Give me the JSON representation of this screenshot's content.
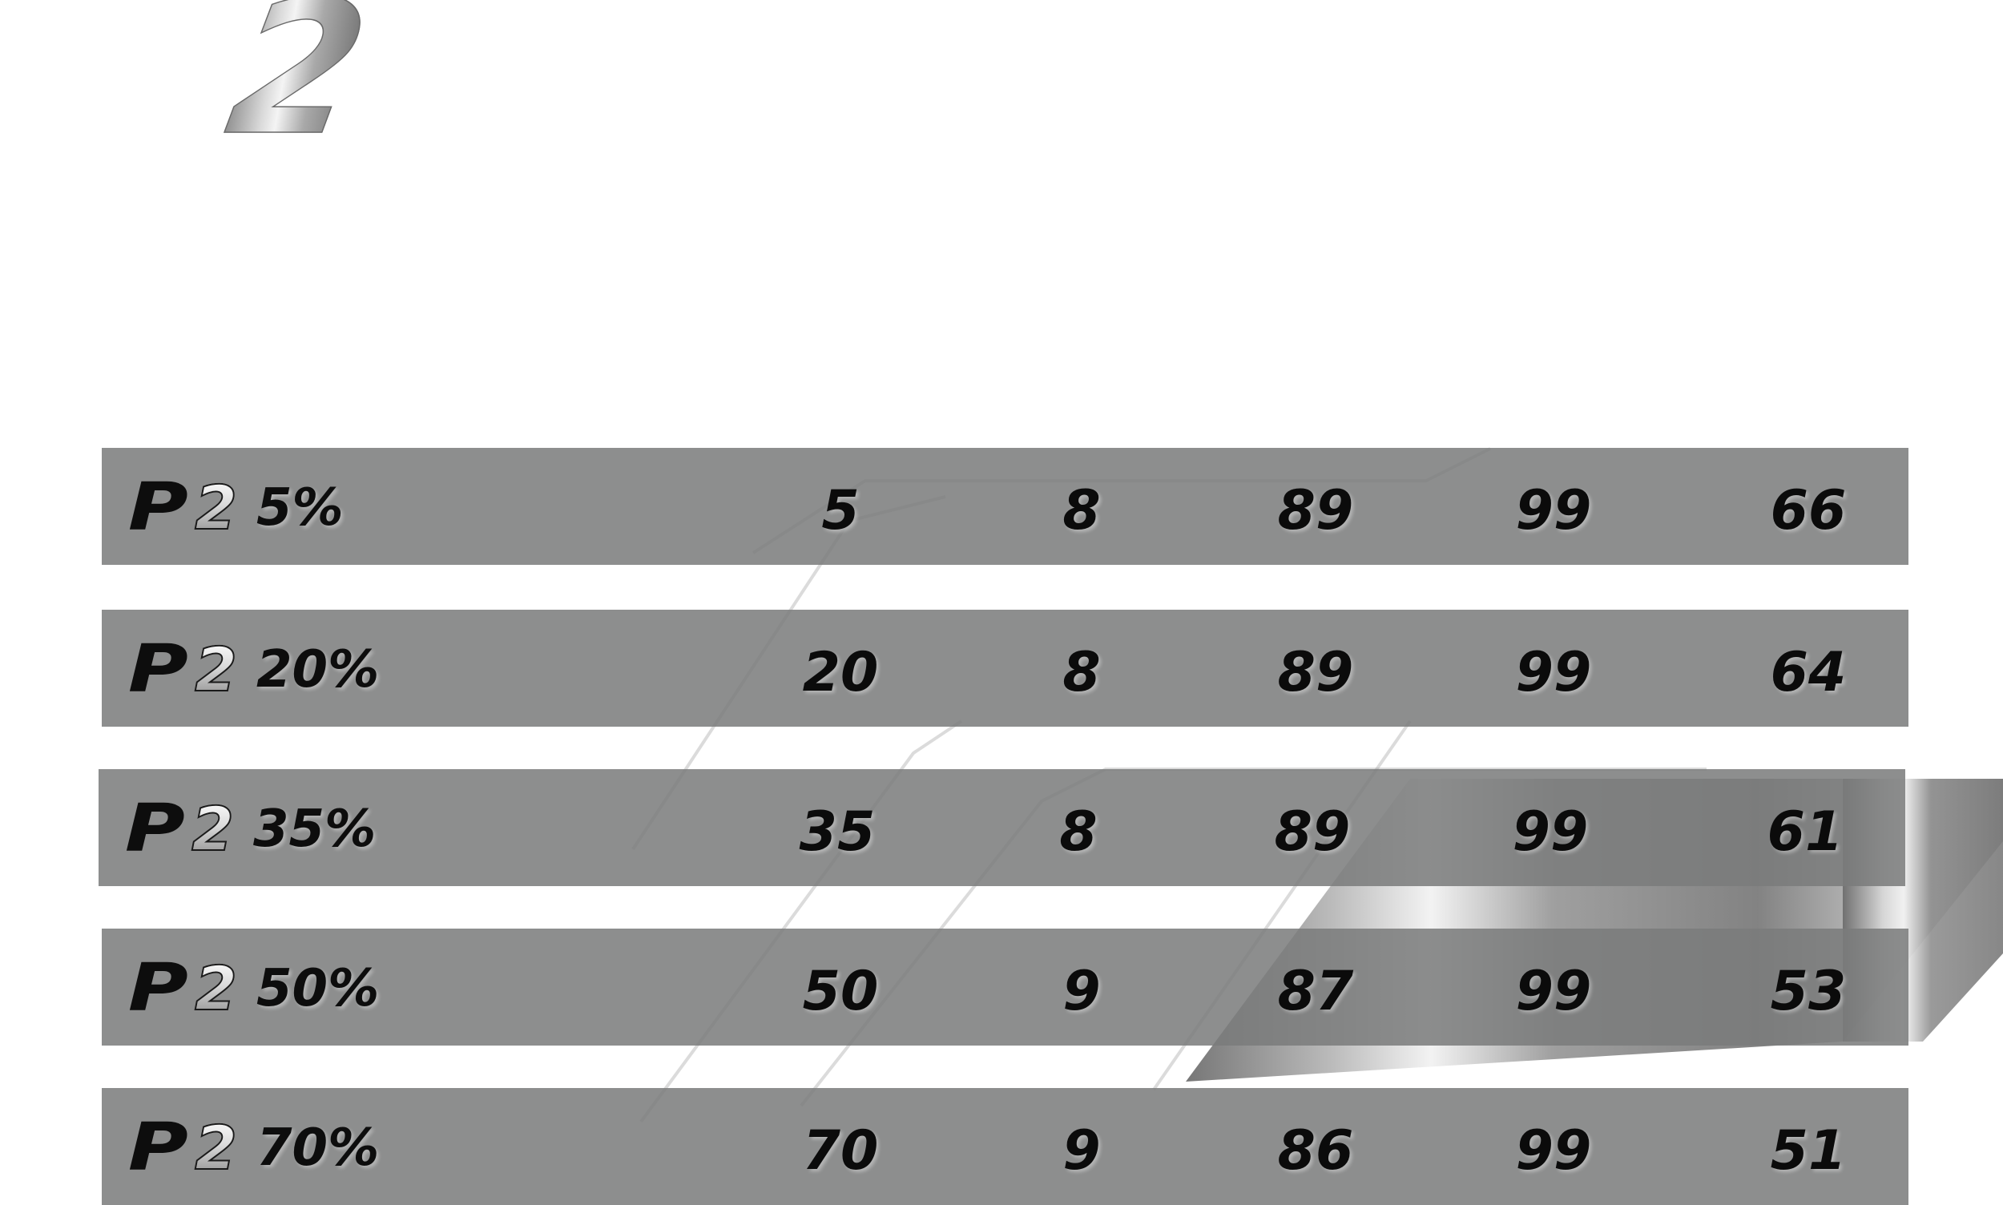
{
  "header": {
    "numeral": "2"
  },
  "rows": [
    {
      "logo_p": "P",
      "logo_2": "2",
      "label": "5%",
      "values": [
        "5",
        "8",
        "89",
        "99",
        "66"
      ]
    },
    {
      "logo_p": "P",
      "logo_2": "2",
      "label": "20%",
      "values": [
        "20",
        "8",
        "89",
        "99",
        "64"
      ]
    },
    {
      "logo_p": "P",
      "logo_2": "2",
      "label": "35%",
      "values": [
        "35",
        "8",
        "89",
        "99",
        "61"
      ]
    },
    {
      "logo_p": "P",
      "logo_2": "2",
      "label": "50%",
      "values": [
        "50",
        "9",
        "87",
        "99",
        "53"
      ]
    },
    {
      "logo_p": "P",
      "logo_2": "2",
      "label": "70%",
      "values": [
        "70",
        "9",
        "86",
        "99",
        "51"
      ]
    }
  ],
  "colors": {
    "row_fill": "#7a7c7c",
    "text": "#0b0b0b",
    "chrome": "#c8c8c8"
  }
}
